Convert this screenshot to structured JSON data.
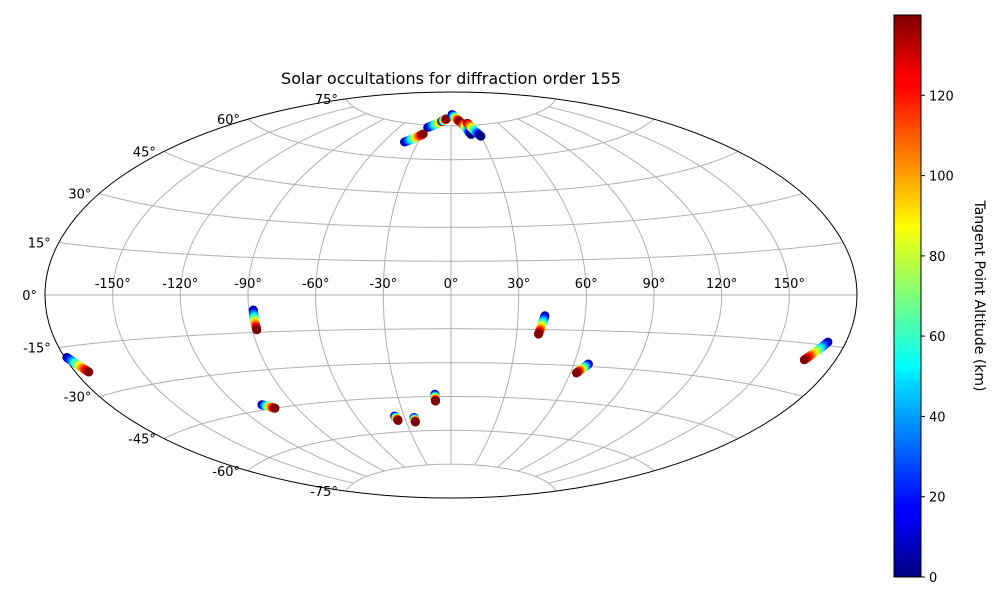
{
  "chart_data": {
    "type": "scatter",
    "projection": "aitoff",
    "title": "Solar occultations for diffraction order 155",
    "grid": true,
    "lon_ticks": [
      -150,
      -120,
      -90,
      -60,
      -30,
      0,
      30,
      60,
      90,
      120,
      150
    ],
    "lat_ticks": [
      -75,
      -60,
      -45,
      -30,
      -15,
      0,
      15,
      30,
      45,
      60,
      75
    ],
    "lon_tick_labels": [
      "-150°",
      "-120°",
      "-90°",
      "-60°",
      "-30°",
      "0°",
      "30°",
      "60°",
      "90°",
      "120°",
      "150°"
    ],
    "lat_tick_labels": [
      "-75°",
      "-60°",
      "-45°",
      "-30°",
      "-15°",
      "0°",
      "15°",
      "30°",
      "45°",
      "60°",
      "75°"
    ],
    "colorbar": {
      "label": "Tangent Point Altitude (km)",
      "colormap": "jet",
      "range": [
        0,
        140
      ],
      "ticks": [
        0,
        20,
        40,
        60,
        80,
        100,
        120
      ],
      "tick_labels": [
        "0",
        "20",
        "40",
        "60",
        "80",
        "100",
        "120"
      ]
    },
    "series": [
      {
        "start": [
          -28,
          74
        ],
        "end": [
          -8,
          78
        ],
        "alt_start": 0,
        "alt_end": 140
      },
      {
        "start": [
          -13,
          77
        ],
        "end": [
          -7,
          78
        ],
        "alt_start": 0,
        "alt_end": 140
      },
      {
        "start": [
          -42,
          67
        ],
        "end": [
          -29,
          71
        ],
        "alt_start": 0,
        "alt_end": 140
      },
      {
        "start": [
          2,
          80
        ],
        "end": [
          12,
          77
        ],
        "alt_start": 0,
        "alt_end": 140
      },
      {
        "start": [
          15,
          76
        ],
        "end": [
          21,
          71
        ],
        "alt_start": 140,
        "alt_end": 0
      },
      {
        "start": [
          22,
          76
        ],
        "end": [
          30,
          70
        ],
        "alt_start": 140,
        "alt_end": 0
      },
      {
        "start": [
          -179,
          -18
        ],
        "end": [
          -174,
          -23
        ],
        "alt_start": 0,
        "alt_end": 140
      },
      {
        "start": [
          -107,
          -43
        ],
        "end": [
          -102,
          -45
        ],
        "alt_start": 0,
        "alt_end": 140
      },
      {
        "start": [
          -88,
          -6
        ],
        "end": [
          -88,
          -14
        ],
        "alt_start": 0,
        "alt_end": 140
      },
      {
        "start": [
          -36,
          -53
        ],
        "end": [
          -35,
          -55
        ],
        "alt_start": 0,
        "alt_end": 140
      },
      {
        "start": [
          -24,
          -54
        ],
        "end": [
          -24,
          -56
        ],
        "alt_start": 0,
        "alt_end": 140
      },
      {
        "start": [
          -9,
          -44
        ],
        "end": [
          -9,
          -47
        ],
        "alt_start": 0,
        "alt_end": 140
      },
      {
        "start": [
          42,
          -9
        ],
        "end": [
          40,
          -17
        ],
        "alt_start": 0,
        "alt_end": 140
      },
      {
        "start": [
          67,
          -29
        ],
        "end": [
          63,
          -33
        ],
        "alt_start": 0,
        "alt_end": 140
      },
      {
        "start": [
          172,
          -14
        ],
        "end": [
          166,
          -20
        ],
        "alt_start": 0,
        "alt_end": 140
      }
    ]
  }
}
